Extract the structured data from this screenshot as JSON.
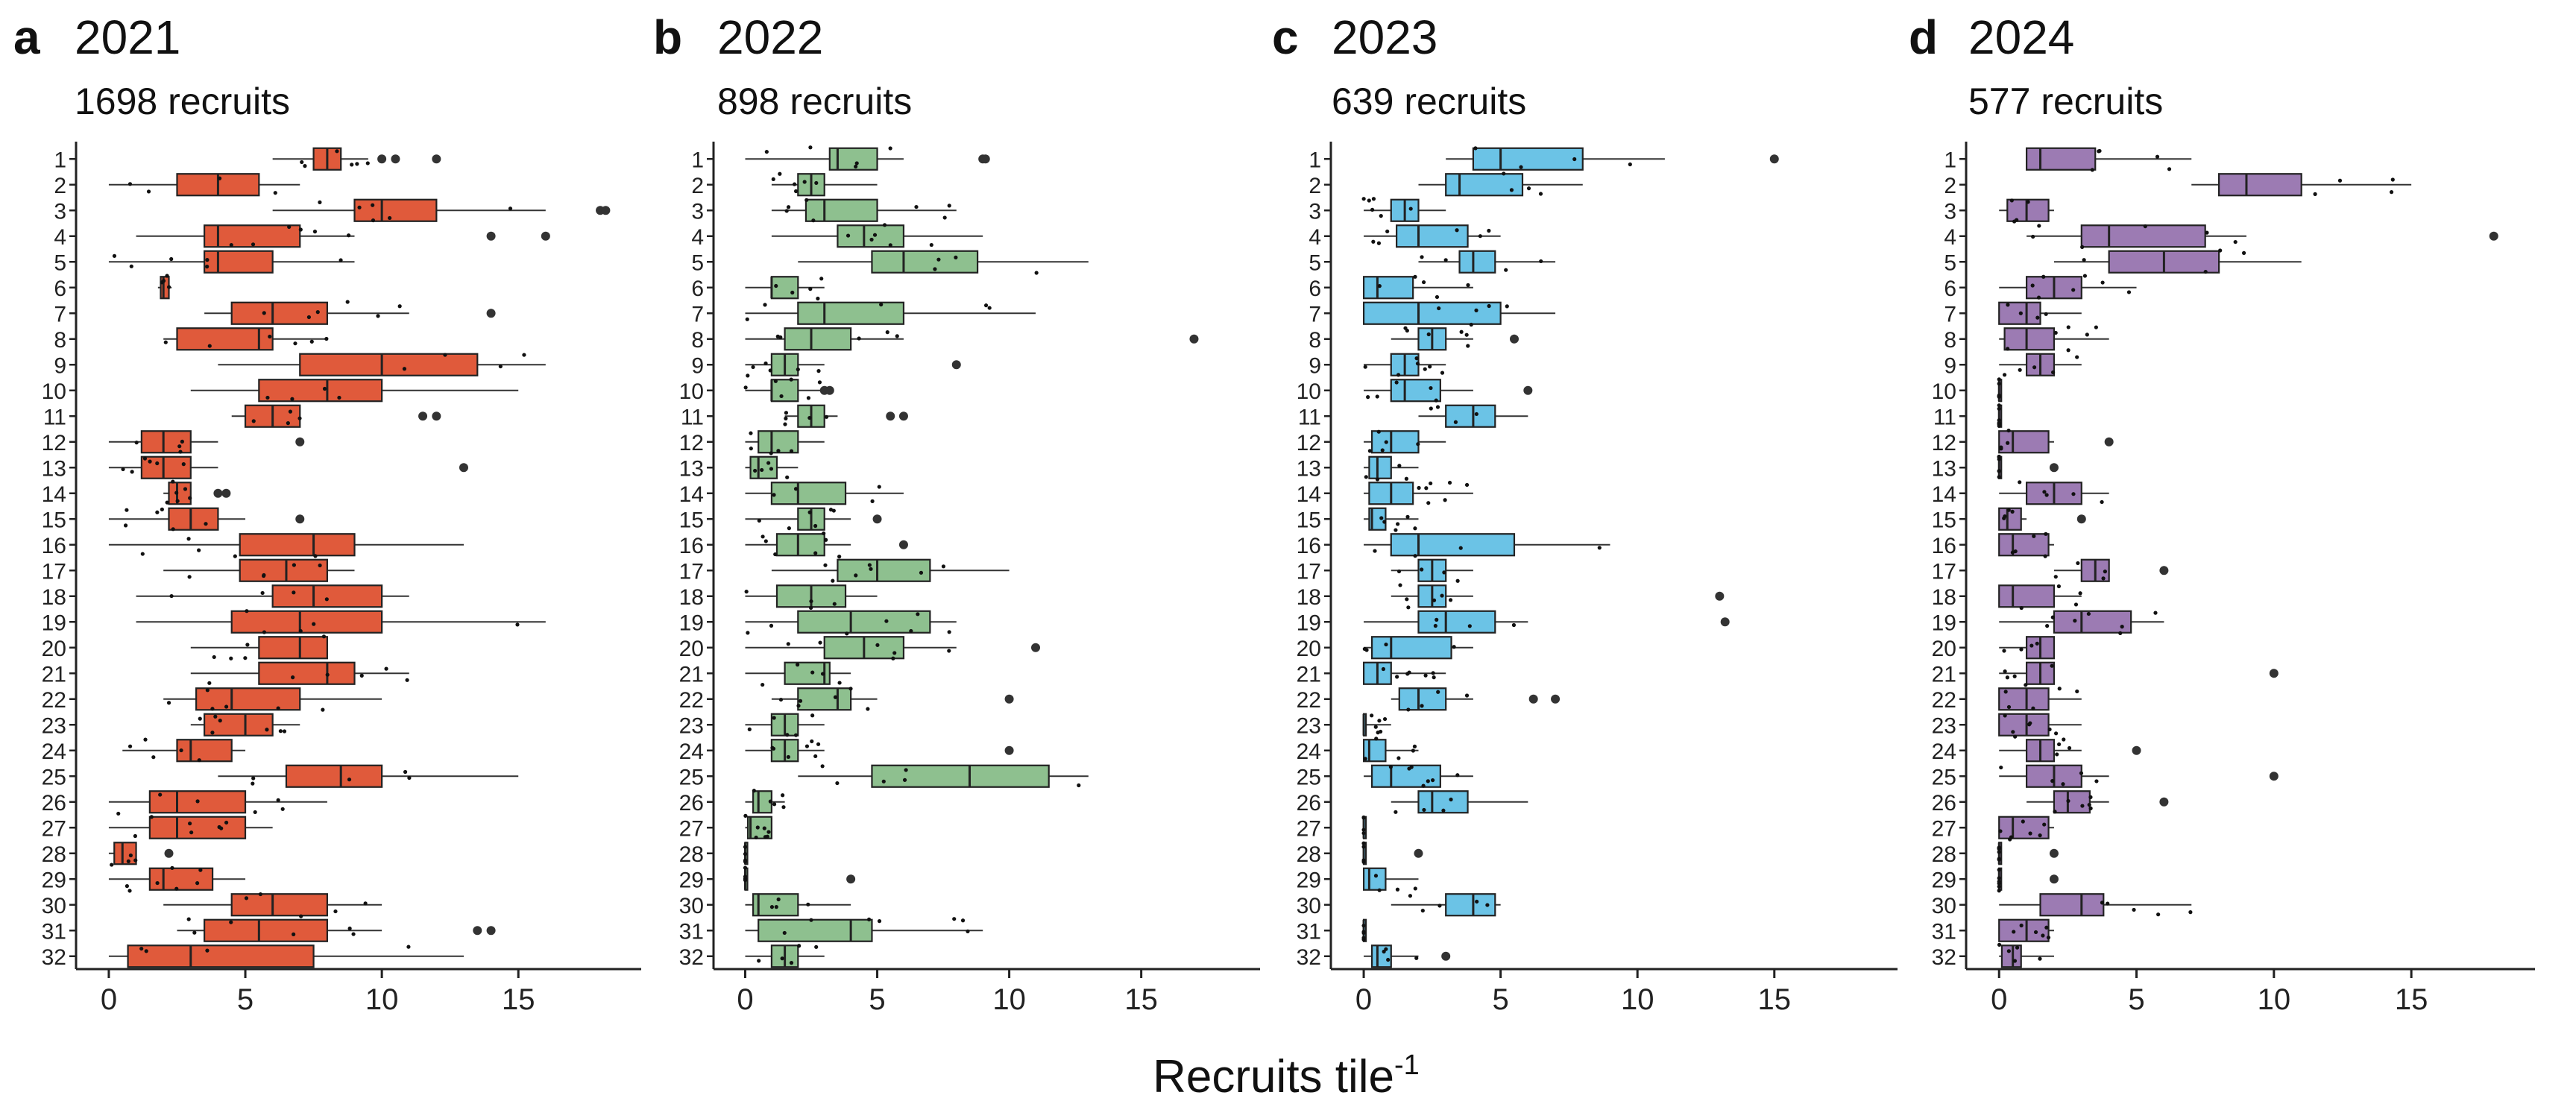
{
  "chart_data": [
    {
      "panel": "a",
      "type": "boxplot",
      "title": "2021",
      "subtitle": "1698 recruits",
      "color": "#E05A3B",
      "xlabel": "Recruits tile",
      "xlabel_sup": "-1",
      "xlim": [
        -1.2,
        19.5
      ],
      "xticks": [
        0,
        5,
        10,
        15
      ],
      "categories": [
        "1",
        "2",
        "3",
        "4",
        "5",
        "6",
        "7",
        "8",
        "9",
        "10",
        "11",
        "12",
        "13",
        "14",
        "15",
        "16",
        "17",
        "18",
        "19",
        "20",
        "21",
        "22",
        "23",
        "24",
        "25",
        "26",
        "27",
        "28",
        "29",
        "30",
        "31",
        "32"
      ],
      "boxes": [
        [
          6,
          7.5,
          8,
          8.5,
          9.5
        ],
        [
          0,
          2.5,
          4,
          5.5,
          7
        ],
        [
          6,
          9,
          10,
          12,
          16
        ],
        [
          1,
          3.5,
          4,
          7,
          9
        ],
        [
          0,
          3.5,
          4,
          6,
          9
        ],
        [
          1.8,
          1.9,
          2,
          2.2,
          2.3
        ],
        [
          3.5,
          4.5,
          6,
          8,
          11
        ],
        [
          2,
          2.5,
          5.5,
          6,
          8
        ],
        [
          4,
          7,
          10,
          13.5,
          16
        ],
        [
          3,
          5.5,
          8,
          10,
          15
        ],
        [
          4.5,
          5,
          6,
          7,
          7
        ],
        [
          0,
          1.2,
          2,
          3,
          4
        ],
        [
          0,
          1.2,
          2,
          3,
          4
        ],
        [
          2,
          2.2,
          2.5,
          3,
          3
        ],
        [
          0,
          2.2,
          3,
          4,
          5
        ],
        [
          0,
          4.8,
          7.5,
          9,
          13
        ],
        [
          2,
          4.8,
          6.5,
          8,
          9
        ],
        [
          1,
          6,
          7.5,
          10,
          11
        ],
        [
          1,
          4.5,
          7,
          10,
          16
        ],
        [
          3,
          5.5,
          7,
          8,
          8
        ],
        [
          3,
          5.5,
          8,
          9,
          11
        ],
        [
          2,
          3.2,
          4.5,
          7,
          10
        ],
        [
          3,
          3.5,
          5,
          6,
          7
        ],
        [
          0.5,
          2.5,
          3,
          4.5,
          5
        ],
        [
          4,
          6.5,
          8.5,
          10,
          15
        ],
        [
          0,
          1.5,
          2.5,
          5,
          8
        ],
        [
          0,
          1.5,
          2.5,
          5,
          6
        ],
        [
          0,
          0.2,
          0.5,
          1,
          1
        ],
        [
          0,
          1.5,
          2,
          3.8,
          5
        ],
        [
          2,
          4.5,
          6,
          8,
          10
        ],
        [
          2.5,
          3.5,
          5.5,
          8,
          10
        ],
        [
          0,
          0.7,
          3,
          7.5,
          13
        ]
      ],
      "outliers": [
        [
          12,
          10,
          10.5
        ],
        [],
        [
          18,
          18.2
        ],
        [
          14,
          16
        ],
        [],
        [],
        [
          14
        ],
        [],
        [],
        [],
        [
          11.5,
          12
        ],
        [
          7
        ],
        [
          13
        ],
        [
          4,
          4.3
        ],
        [
          7
        ],
        [],
        [],
        [],
        [],
        [],
        [],
        [],
        [],
        [],
        [],
        [],
        [],
        [
          2.2
        ],
        [],
        [],
        [
          13.5,
          14
        ],
        []
      ]
    },
    {
      "panel": "b",
      "type": "boxplot",
      "title": "2022",
      "subtitle": "898 recruits",
      "color": "#8EC08F",
      "xlabel": "Recruits tile",
      "xlabel_sup": "-1",
      "xlim": [
        -1.2,
        19.5
      ],
      "xticks": [
        0,
        5,
        10,
        15
      ],
      "categories": [
        "1",
        "2",
        "3",
        "4",
        "5",
        "6",
        "7",
        "8",
        "9",
        "10",
        "11",
        "12",
        "13",
        "14",
        "15",
        "16",
        "17",
        "18",
        "19",
        "20",
        "21",
        "22",
        "23",
        "24",
        "25",
        "26",
        "27",
        "28",
        "29",
        "30",
        "31",
        "32"
      ],
      "boxes": [
        [
          0,
          3.2,
          3.5,
          5,
          6
        ],
        [
          1,
          2,
          2.5,
          3,
          5
        ],
        [
          1,
          2.3,
          3,
          5,
          8
        ],
        [
          1,
          3.5,
          4.5,
          6,
          9
        ],
        [
          2,
          4.8,
          6,
          8.8,
          13
        ],
        [
          0,
          1,
          1,
          2,
          3
        ],
        [
          0,
          2,
          3,
          6,
          11
        ],
        [
          0,
          1.5,
          2.5,
          4,
          6
        ],
        [
          0,
          1,
          1.5,
          2,
          3
        ],
        [
          0,
          1,
          1,
          2,
          3
        ],
        [
          1.5,
          2,
          2.5,
          3,
          3.5
        ],
        [
          0,
          0.5,
          1,
          2,
          3
        ],
        [
          0,
          0.2,
          0.5,
          1.2,
          2
        ],
        [
          0,
          1,
          2,
          3.8,
          6
        ],
        [
          0,
          2,
          2.5,
          3,
          4
        ],
        [
          0,
          1.2,
          2,
          3,
          4
        ],
        [
          1,
          3.5,
          5,
          7,
          10
        ],
        [
          0,
          1.2,
          2.5,
          3.8,
          5
        ],
        [
          0,
          2,
          4,
          7,
          8
        ],
        [
          0,
          3,
          4.5,
          6,
          8
        ],
        [
          0,
          1.5,
          3,
          3.2,
          4
        ],
        [
          1,
          2,
          3.5,
          4,
          5
        ],
        [
          0,
          1,
          1.5,
          2,
          3
        ],
        [
          0,
          1,
          1.5,
          2,
          3
        ],
        [
          2,
          4.8,
          8.5,
          11.5,
          13
        ],
        [
          0,
          0.3,
          0.5,
          1,
          1.5
        ],
        [
          0,
          0.1,
          0.2,
          1,
          1
        ],
        [
          0,
          0,
          0,
          0,
          0
        ],
        [
          0,
          0,
          0,
          0,
          0
        ],
        [
          0,
          0.3,
          0.5,
          2,
          4
        ],
        [
          0,
          0.5,
          4,
          4.8,
          9
        ],
        [
          0,
          1,
          1.5,
          2,
          3
        ]
      ],
      "outliers": [
        [
          9,
          9.1
        ],
        [],
        [],
        [],
        [],
        [],
        [],
        [
          17
        ],
        [
          8
        ],
        [
          3,
          3.2
        ],
        [
          5.5,
          6
        ],
        [],
        [],
        [],
        [
          5
        ],
        [
          6
        ],
        [],
        [],
        [],
        [
          11
        ],
        [],
        [
          10
        ],
        [],
        [
          10
        ],
        [],
        [],
        [],
        [],
        [
          4
        ],
        [],
        [],
        []
      ]
    },
    {
      "panel": "c",
      "type": "boxplot",
      "title": "2023",
      "subtitle": "639 recruits",
      "color": "#6BC3E6",
      "xlabel": "Recruits tile",
      "xlabel_sup": "-1",
      "xlim": [
        -1.2,
        19.5
      ],
      "xticks": [
        0,
        5,
        10,
        15
      ],
      "categories": [
        "1",
        "2",
        "3",
        "4",
        "5",
        "6",
        "7",
        "8",
        "9",
        "10",
        "11",
        "12",
        "13",
        "14",
        "15",
        "16",
        "17",
        "18",
        "19",
        "20",
        "21",
        "22",
        "23",
        "24",
        "25",
        "26",
        "27",
        "28",
        "29",
        "30",
        "31",
        "32"
      ],
      "boxes": [
        [
          3,
          4,
          5,
          8,
          11
        ],
        [
          2,
          3,
          3.5,
          5.8,
          8
        ],
        [
          0,
          1,
          1.5,
          2,
          3
        ],
        [
          0,
          1.2,
          2,
          3.8,
          5
        ],
        [
          2,
          3.5,
          4,
          4.8,
          7
        ],
        [
          0,
          0,
          0.5,
          1.8,
          4
        ],
        [
          0,
          0,
          2,
          5,
          7
        ],
        [
          1,
          2,
          2.5,
          3,
          4
        ],
        [
          0,
          1,
          1.5,
          2,
          3
        ],
        [
          0,
          1,
          1.5,
          2.8,
          4
        ],
        [
          2,
          3,
          4,
          4.8,
          6
        ],
        [
          0,
          0.3,
          1,
          2,
          3
        ],
        [
          0,
          0.2,
          0.5,
          1,
          2
        ],
        [
          0,
          0.2,
          1,
          1.8,
          4
        ],
        [
          0,
          0.2,
          0.3,
          0.8,
          2
        ],
        [
          0,
          1,
          2,
          5.5,
          9
        ],
        [
          1,
          2,
          2.5,
          3,
          4
        ],
        [
          1,
          2,
          2.5,
          3,
          4
        ],
        [
          0,
          2,
          3,
          4.8,
          6
        ],
        [
          0,
          0.3,
          1,
          3.2,
          4
        ],
        [
          0,
          0,
          0.5,
          1,
          3
        ],
        [
          1,
          1.3,
          2,
          3,
          4
        ],
        [
          0,
          0,
          0,
          0,
          1
        ],
        [
          0,
          0,
          0.2,
          0.8,
          2
        ],
        [
          0,
          0.3,
          1,
          2.8,
          4
        ],
        [
          1,
          2,
          2.5,
          3.8,
          6
        ],
        [
          0,
          0,
          0,
          0,
          0
        ],
        [
          0,
          0,
          0,
          0,
          0
        ],
        [
          0,
          0,
          0.2,
          0.8,
          2
        ],
        [
          1,
          3,
          4,
          4.8,
          5
        ],
        [
          0,
          0,
          0,
          0,
          0
        ],
        [
          0,
          0.3,
          0.5,
          1,
          2
        ]
      ],
      "outliers": [
        [
          15
        ],
        [],
        [],
        [],
        [],
        [],
        [],
        [
          5.5
        ],
        [],
        [
          6
        ],
        [],
        [],
        [],
        [],
        [],
        [],
        [],
        [
          13
        ],
        [
          13.2
        ],
        [],
        [],
        [
          6.2,
          7
        ],
        [],
        [],
        [],
        [],
        [],
        [
          2
        ],
        [],
        [],
        [],
        [
          3
        ]
      ]
    },
    {
      "panel": "d",
      "type": "boxplot",
      "title": "2024",
      "subtitle": "577 recruits",
      "color": "#9C7BB3",
      "xlabel": "Recruits tile",
      "xlabel_sup": "-1",
      "xlim": [
        -1.2,
        19.5
      ],
      "xticks": [
        0,
        5,
        10,
        15
      ],
      "categories": [
        "1",
        "2",
        "3",
        "4",
        "5",
        "6",
        "7",
        "8",
        "9",
        "10",
        "11",
        "12",
        "13",
        "14",
        "15",
        "16",
        "17",
        "18",
        "19",
        "20",
        "21",
        "22",
        "23",
        "24",
        "25",
        "26",
        "27",
        "28",
        "29",
        "30",
        "31",
        "32"
      ],
      "boxes": [
        [
          1,
          1,
          1.5,
          3.5,
          7
        ],
        [
          7,
          8,
          9,
          11,
          15
        ],
        [
          0,
          0.3,
          1,
          1.8,
          2
        ],
        [
          1,
          3,
          4,
          7.5,
          9
        ],
        [
          2,
          4,
          6,
          8,
          11
        ],
        [
          0,
          1,
          2,
          3,
          5
        ],
        [
          0,
          0,
          1,
          1.5,
          3
        ],
        [
          0,
          0.2,
          1,
          2,
          4
        ],
        [
          0,
          1,
          1.5,
          2,
          3
        ],
        [
          0,
          0,
          0,
          0,
          0
        ],
        [
          0,
          0,
          0,
          0,
          0
        ],
        [
          0,
          0,
          0.5,
          1.8,
          2
        ],
        [
          0,
          0,
          0,
          0,
          0
        ],
        [
          0,
          1,
          2,
          3,
          4
        ],
        [
          0,
          0,
          0.3,
          0.8,
          1
        ],
        [
          0,
          0,
          0.5,
          1.8,
          2
        ],
        [
          2,
          3,
          3.5,
          4,
          4
        ],
        [
          0,
          0,
          0.5,
          2,
          3
        ],
        [
          0,
          2,
          3,
          4.8,
          6
        ],
        [
          0,
          1,
          1.5,
          2,
          2
        ],
        [
          0,
          1,
          1.5,
          2,
          2
        ],
        [
          0,
          0,
          1,
          1.8,
          3
        ],
        [
          0,
          0,
          1,
          1.8,
          3
        ],
        [
          0,
          1,
          1.5,
          2,
          3
        ],
        [
          0,
          1,
          2,
          3,
          4
        ],
        [
          1,
          2,
          2.5,
          3.3,
          4
        ],
        [
          0,
          0,
          0.5,
          1.8,
          2
        ],
        [
          0,
          0,
          0,
          0,
          0
        ],
        [
          0,
          0,
          0,
          0,
          0
        ],
        [
          0,
          1.5,
          3,
          3.8,
          7
        ],
        [
          0,
          0,
          1,
          1.8,
          2
        ],
        [
          0,
          0.1,
          0.5,
          0.8,
          2
        ]
      ],
      "outliers": [
        [],
        [],
        [],
        [
          18
        ],
        [],
        [],
        [],
        [],
        [],
        [],
        [],
        [
          4
        ],
        [
          2
        ],
        [],
        [
          3
        ],
        [],
        [
          6
        ],
        [],
        [],
        [],
        [
          10
        ],
        [],
        [],
        [
          5
        ],
        [
          10
        ],
        [
          6
        ],
        [],
        [
          2
        ],
        [
          2
        ],
        [],
        [],
        []
      ]
    }
  ]
}
